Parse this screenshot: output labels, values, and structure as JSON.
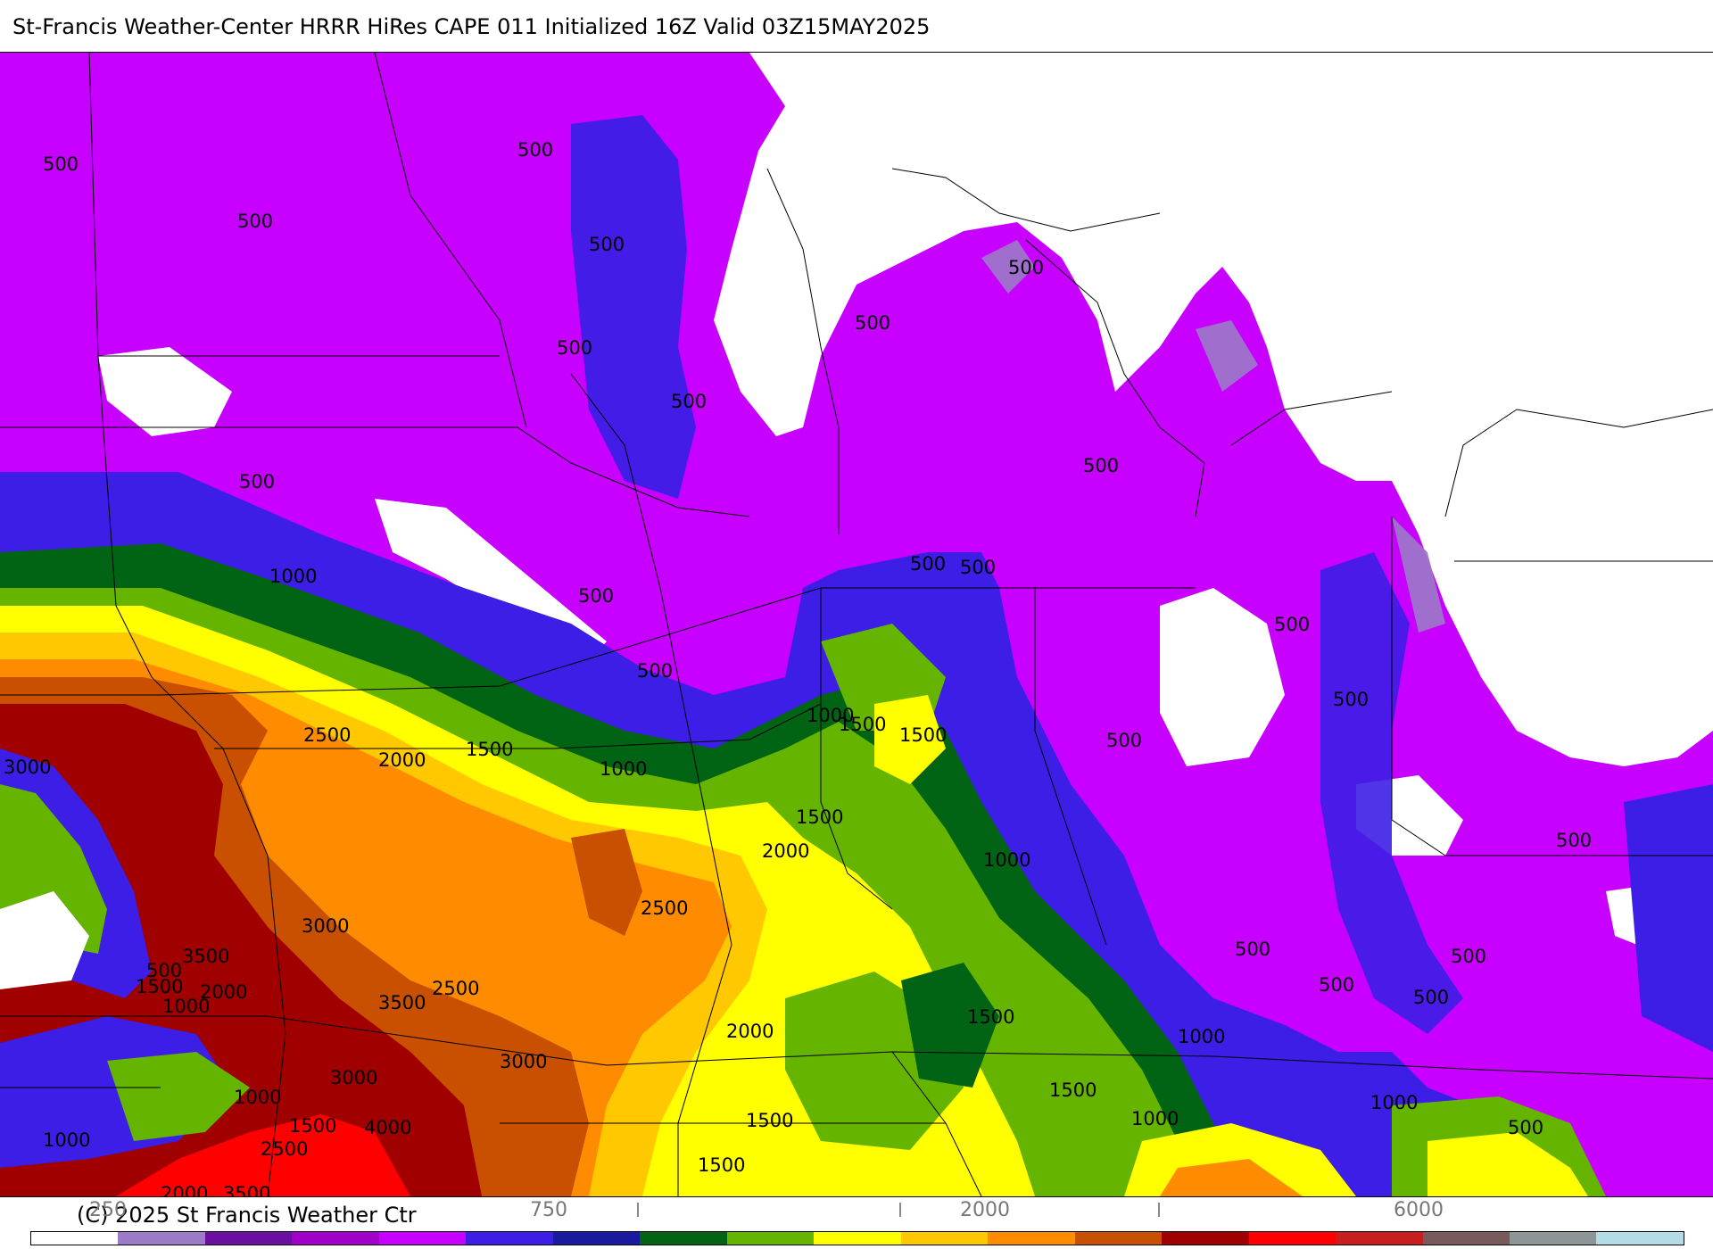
{
  "header": {
    "title": "St-Francis Weather-Center HRRR HiRes CAPE  011 Initialized  16Z Valid 03Z15MAY2025"
  },
  "footer": {
    "copyright": "(C) 2025 St Francis Weather Ctr"
  },
  "legend": {
    "colors": [
      "#ffffff",
      "#9b7bc8",
      "#6a0fa0",
      "#a000c8",
      "#c800ff",
      "#3c1ee6",
      "#1a1aa0",
      "#006414",
      "#64b400",
      "#ffff00",
      "#ffc800",
      "#ff8c00",
      "#c85000",
      "#a00000",
      "#ff0000",
      "#c81e1e",
      "#785a5a",
      "#8c9696",
      "#b4dce6"
    ],
    "ticks": [
      {
        "label": "250",
        "value": 250
      },
      {
        "label": "750",
        "value": 750
      },
      {
        "label": "2000",
        "value": 2000
      },
      {
        "label": "6000",
        "value": 6000
      }
    ]
  },
  "map": {
    "contour_labels": [
      {
        "text": "500"
      },
      {
        "text": "500"
      },
      {
        "text": "500"
      },
      {
        "text": "500"
      },
      {
        "text": "500"
      },
      {
        "text": "500"
      },
      {
        "text": "500"
      },
      {
        "text": "500"
      },
      {
        "text": "500"
      },
      {
        "text": "500"
      },
      {
        "text": "500"
      },
      {
        "text": "500"
      },
      {
        "text": "500"
      },
      {
        "text": "500"
      },
      {
        "text": "500"
      },
      {
        "text": "500"
      },
      {
        "text": "500"
      },
      {
        "text": "500"
      },
      {
        "text": "500"
      },
      {
        "text": "500"
      },
      {
        "text": "500"
      },
      {
        "text": "500"
      },
      {
        "text": "500"
      },
      {
        "text": "500"
      },
      {
        "text": "1000"
      },
      {
        "text": "1000"
      },
      {
        "text": "1000"
      },
      {
        "text": "1000"
      },
      {
        "text": "1000"
      },
      {
        "text": "1000"
      },
      {
        "text": "1000"
      },
      {
        "text": "1000"
      },
      {
        "text": "1000"
      },
      {
        "text": "1000"
      },
      {
        "text": "1000"
      },
      {
        "text": "1500"
      },
      {
        "text": "1500"
      },
      {
        "text": "1500"
      },
      {
        "text": "1500"
      },
      {
        "text": "1500"
      },
      {
        "text": "1500"
      },
      {
        "text": "1500"
      },
      {
        "text": "1500"
      },
      {
        "text": "1500"
      },
      {
        "text": "1500"
      },
      {
        "text": "1500"
      },
      {
        "text": "2000"
      },
      {
        "text": "2000"
      },
      {
        "text": "2000"
      },
      {
        "text": "2000"
      },
      {
        "text": "2000"
      },
      {
        "text": "2500"
      },
      {
        "text": "2500"
      },
      {
        "text": "2500"
      },
      {
        "text": "2500"
      },
      {
        "text": "2500"
      },
      {
        "text": "3000"
      },
      {
        "text": "3000"
      },
      {
        "text": "3000"
      },
      {
        "text": "3000"
      },
      {
        "text": "3500"
      },
      {
        "text": "3500"
      },
      {
        "text": "3500"
      },
      {
        "text": "4000"
      }
    ]
  }
}
